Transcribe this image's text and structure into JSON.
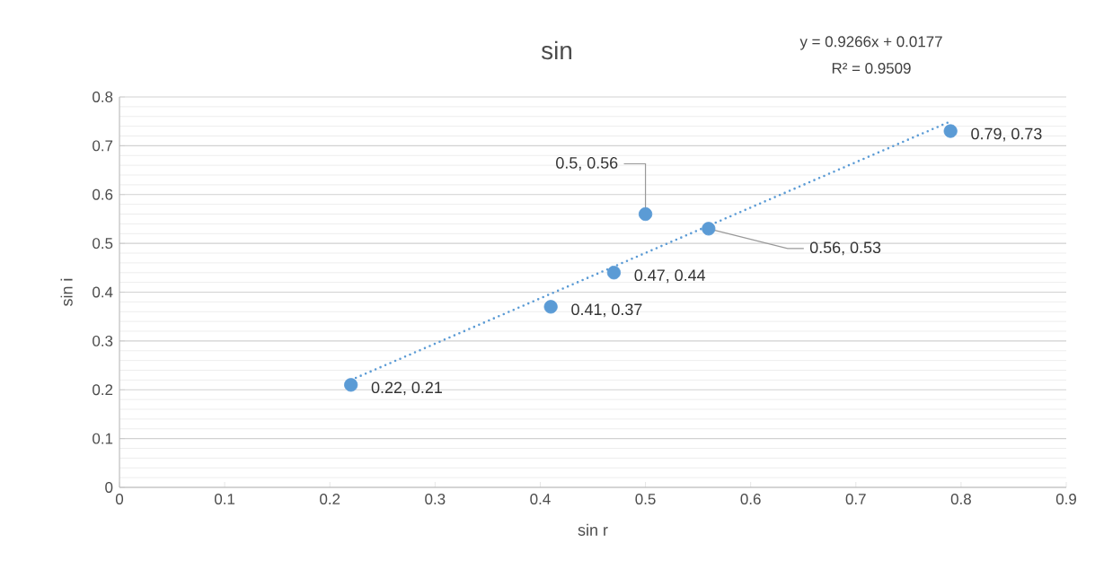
{
  "chart_data": {
    "type": "scatter",
    "title": "sin",
    "xlabel": "sin r",
    "ylabel": "sin i",
    "annotations": [
      "y = 0.9266x + 0.0177",
      "R² = 0.9509"
    ],
    "series": [
      {
        "color": "#5b9bd5",
        "marker": "circle",
        "x": [
          0.22,
          0.41,
          0.47,
          0.5,
          0.56,
          0.79
        ],
        "values": [
          0.21,
          0.37,
          0.44,
          0.56,
          0.53,
          0.73
        ],
        "value_labels": [
          "0.22, 0.21",
          "0.41, 0.37",
          "0.47, 0.44",
          "0.5, 0.56",
          "0.56, 0.53",
          "0.79, 0.73"
        ]
      },
      {
        "type": "line",
        "color": "#5b9bd5",
        "line_style": "dotted",
        "x": [
          0.22,
          0.79
        ],
        "values": [
          0.22,
          0.75
        ]
      }
    ],
    "xlim": [
      0,
      0.9
    ],
    "xticks": [
      0,
      0.1,
      0.2,
      0.3,
      0.4,
      0.5,
      0.6,
      0.7,
      0.8,
      0.9
    ],
    "ylim": [
      0,
      0.8
    ],
    "yticks": [
      0,
      0.1,
      0.2,
      0.3,
      0.4,
      0.5,
      0.6,
      0.7,
      0.8
    ],
    "grid": "y"
  }
}
